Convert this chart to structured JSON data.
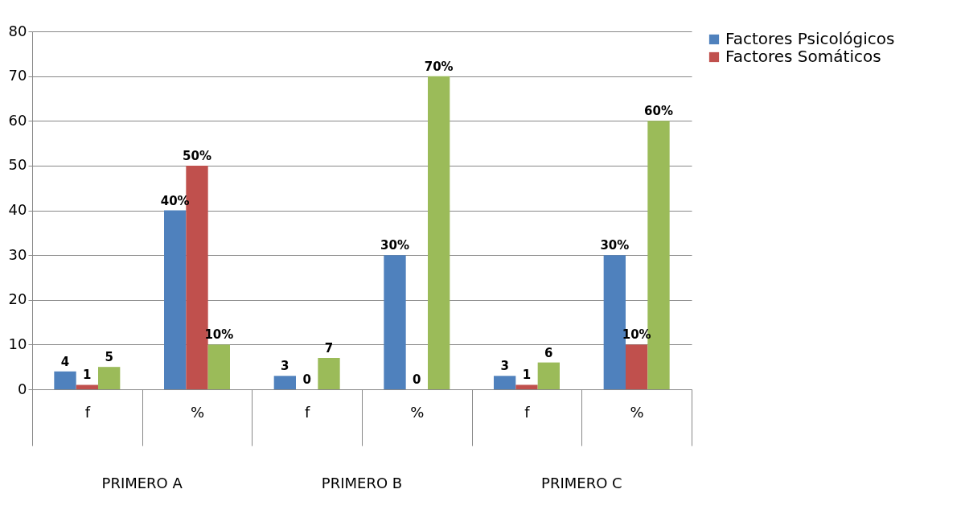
{
  "chart_data": {
    "type": "bar",
    "categories": [
      "f",
      "%",
      "f",
      "%",
      "f",
      "%"
    ],
    "series": [
      {
        "name": "Factores Psicológicos",
        "color": "#4f81bd",
        "values": [
          4,
          40,
          3,
          30,
          3,
          30
        ],
        "value_labels": [
          "4",
          "40%",
          "3",
          "30%",
          "3",
          "30%"
        ]
      },
      {
        "name": "Factores Somáticos",
        "color": "#c0504d",
        "values": [
          1,
          50,
          0,
          0,
          1,
          10
        ],
        "value_labels": [
          "1",
          "50%",
          "0",
          "0",
          "1",
          "10%"
        ]
      },
      {
        "color": "#9bbb59",
        "values": [
          5,
          10,
          7,
          70,
          6,
          60
        ],
        "value_labels": [
          "5",
          "10%",
          "7",
          "70%",
          "6",
          "60%"
        ]
      }
    ],
    "annotations": [
      "PRIMERO A",
      "PRIMERO B",
      "PRIMERO C"
    ],
    "ylim": [
      0,
      80
    ],
    "yticks": [
      0,
      10,
      20,
      30,
      40,
      50,
      60,
      70,
      80
    ],
    "grid": "y",
    "legend": "right"
  }
}
